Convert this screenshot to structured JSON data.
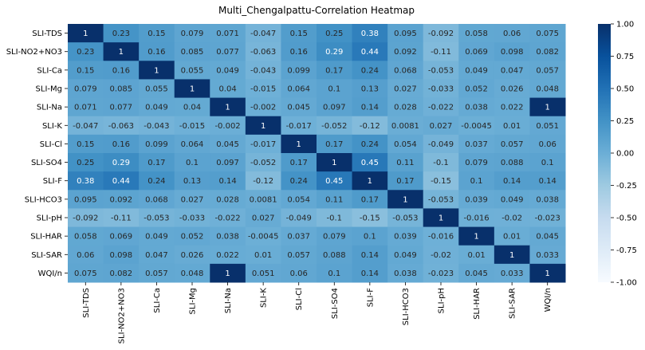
{
  "chart_data": {
    "type": "heatmap",
    "title": "Multi_Chengalpattu-Correlation Heatmap",
    "xlabel": "",
    "ylabel": "",
    "labels": [
      "SLI-TDS",
      "SLI-NO2+NO3",
      "SLI-Ca",
      "SLI-Mg",
      "SLI-Na",
      "SLI-K",
      "SLI-Cl",
      "SLI-SO4",
      "SLI-F",
      "SLI-HCO3",
      "SLI-pH",
      "SLI-HAR",
      "SLI-SAR",
      "WQI/n"
    ],
    "value_labels": [
      [
        "1",
        "0.23",
        "0.15",
        "0.079",
        "0.071",
        "-0.047",
        "0.15",
        "0.25",
        "0.38",
        "0.095",
        "-0.092",
        "0.058",
        "0.06",
        "0.075"
      ],
      [
        "0.23",
        "1",
        "0.16",
        "0.085",
        "0.077",
        "-0.063",
        "0.16",
        "0.29",
        "0.44",
        "0.092",
        "-0.11",
        "0.069",
        "0.098",
        "0.082"
      ],
      [
        "0.15",
        "0.16",
        "1",
        "0.055",
        "0.049",
        "-0.043",
        "0.099",
        "0.17",
        "0.24",
        "0.068",
        "-0.053",
        "0.049",
        "0.047",
        "0.057"
      ],
      [
        "0.079",
        "0.085",
        "0.055",
        "1",
        "0.04",
        "-0.015",
        "0.064",
        "0.1",
        "0.13",
        "0.027",
        "-0.033",
        "0.052",
        "0.026",
        "0.048"
      ],
      [
        "0.071",
        "0.077",
        "0.049",
        "0.04",
        "1",
        "-0.002",
        "0.045",
        "0.097",
        "0.14",
        "0.028",
        "-0.022",
        "0.038",
        "0.022",
        "1"
      ],
      [
        "-0.047",
        "-0.063",
        "-0.043",
        "-0.015",
        "-0.002",
        "1",
        "-0.017",
        "-0.052",
        "-0.12",
        "0.0081",
        "0.027",
        "-0.0045",
        "0.01",
        "0.051"
      ],
      [
        "0.15",
        "0.16",
        "0.099",
        "0.064",
        "0.045",
        "-0.017",
        "1",
        "0.17",
        "0.24",
        "0.054",
        "-0.049",
        "0.037",
        "0.057",
        "0.06"
      ],
      [
        "0.25",
        "0.29",
        "0.17",
        "0.1",
        "0.097",
        "-0.052",
        "0.17",
        "1",
        "0.45",
        "0.11",
        "-0.1",
        "0.079",
        "0.088",
        "0.1"
      ],
      [
        "0.38",
        "0.44",
        "0.24",
        "0.13",
        "0.14",
        "-0.12",
        "0.24",
        "0.45",
        "1",
        "0.17",
        "-0.15",
        "0.1",
        "0.14",
        "0.14"
      ],
      [
        "0.095",
        "0.092",
        "0.068",
        "0.027",
        "0.028",
        "0.0081",
        "0.054",
        "0.11",
        "0.17",
        "1",
        "-0.053",
        "0.039",
        "0.049",
        "0.038"
      ],
      [
        "-0.092",
        "-0.11",
        "-0.053",
        "-0.033",
        "-0.022",
        "0.027",
        "-0.049",
        "-0.1",
        "-0.15",
        "-0.053",
        "1",
        "-0.016",
        "-0.02",
        "-0.023"
      ],
      [
        "0.058",
        "0.069",
        "0.049",
        "0.052",
        "0.038",
        "-0.0045",
        "0.037",
        "0.079",
        "0.1",
        "0.039",
        "-0.016",
        "1",
        "0.01",
        "0.045"
      ],
      [
        "0.06",
        "0.098",
        "0.047",
        "0.026",
        "0.022",
        "0.01",
        "0.057",
        "0.088",
        "0.14",
        "0.049",
        "-0.02",
        "0.01",
        "1",
        "0.033"
      ],
      [
        "0.075",
        "0.082",
        "0.057",
        "0.048",
        "1",
        "0.051",
        "0.06",
        "0.1",
        "0.14",
        "0.038",
        "-0.023",
        "0.045",
        "0.033",
        "1"
      ]
    ],
    "vmin": -1,
    "vmax": 1,
    "colormap": "Blues",
    "colorbar_ticks": [
      "1.00",
      "0.75",
      "0.50",
      "0.25",
      "0.00",
      "-0.25",
      "-0.50",
      "-0.75",
      "-1.00"
    ],
    "grid": false,
    "legend": "colorbar-right"
  }
}
